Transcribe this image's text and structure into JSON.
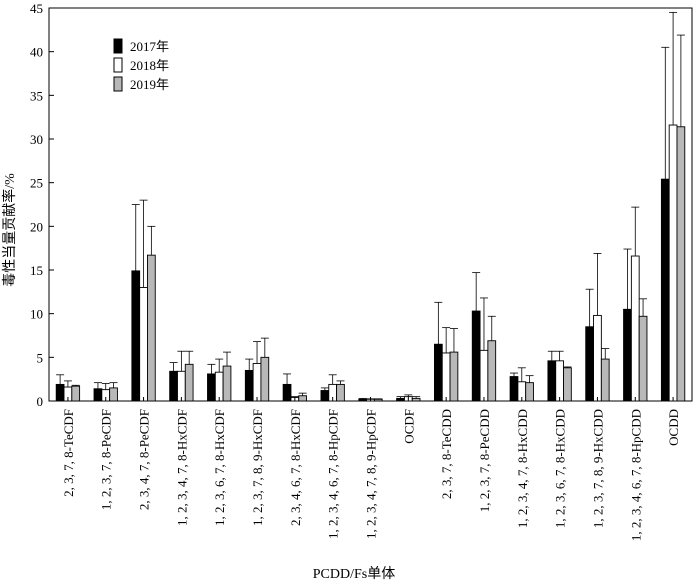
{
  "chart_data": {
    "type": "bar",
    "title": "",
    "xlabel": "PCDD/Fs单体",
    "ylabel": "毒性当量贡献率/%",
    "ylim": [
      0,
      45
    ],
    "yticks": [
      0,
      5,
      10,
      15,
      20,
      25,
      30,
      35,
      40,
      45
    ],
    "grid": false,
    "legend_position": "top-left",
    "categories": [
      "2, 3, 7, 8-TeCDF",
      "1, 2, 3, 7, 8-PeCDF",
      "2, 3, 4, 7, 8-PeCDF",
      "1, 2, 3, 4, 7, 8-HxCDF",
      "1, 2, 3, 6, 7, 8-HxCDF",
      "1, 2, 3, 7, 8, 9-HxCDF",
      "2, 3, 4, 6, 7, 8-HxCDF",
      "1, 2, 3, 4, 6, 7, 8-HpCDF",
      "1, 2, 3, 4, 7, 8, 9-HpCDF",
      "OCDF",
      "2, 3, 7, 8-TeCDD",
      "1, 2, 3, 7, 8-PeCDD",
      "1, 2, 3, 4, 7, 8-HxCDD",
      "1, 2, 3, 6, 7, 8-HxCDD",
      "1, 2, 3, 7, 8, 9-HxCDD",
      "1, 2, 3, 4, 6, 7, 8-HpCDD",
      "OCDD"
    ],
    "series": [
      {
        "name": "2017年",
        "color": "#000000",
        "values": [
          1.9,
          1.4,
          14.9,
          3.4,
          3.1,
          3.5,
          1.9,
          1.2,
          0.2,
          0.3,
          6.5,
          10.3,
          2.8,
          4.6,
          8.5,
          10.5,
          25.4
        ],
        "errors": [
          1.1,
          0.7,
          7.6,
          1.0,
          1.1,
          1.3,
          1.2,
          0.3,
          0.1,
          0.2,
          4.8,
          4.4,
          0.4,
          1.1,
          4.3,
          6.9,
          15.1
        ]
      },
      {
        "name": "2018年",
        "color": "#ffffff",
        "values": [
          1.6,
          1.3,
          13.0,
          3.4,
          3.3,
          4.3,
          0.4,
          1.9,
          0.2,
          0.5,
          5.5,
          5.8,
          2.2,
          4.6,
          9.8,
          16.6,
          31.6
        ]
      },
      {
        "name": "2019年",
        "color": "#b8b8b8",
        "values": [
          1.7,
          1.5,
          16.7,
          4.2,
          4.0,
          5.0,
          0.6,
          1.9,
          0.2,
          0.3,
          5.6,
          6.9,
          2.1,
          3.8,
          4.8,
          9.7,
          31.4
        ],
        "errors": [
          0.1,
          0.6,
          3.3,
          1.5,
          1.6,
          2.2,
          0.3,
          0.4,
          0.05,
          0.2,
          2.7,
          2.8,
          0.8,
          0.1,
          1.2,
          2.0,
          10.5
        ]
      }
    ],
    "series_2018_errors": [
      0.7,
      0.7,
      10.0,
      2.3,
      1.5,
      2.5,
      0.1,
      1.1,
      0.05,
      0.2,
      2.9,
      6.0,
      1.6,
      1.1,
      7.1,
      5.6,
      12.9
    ]
  }
}
